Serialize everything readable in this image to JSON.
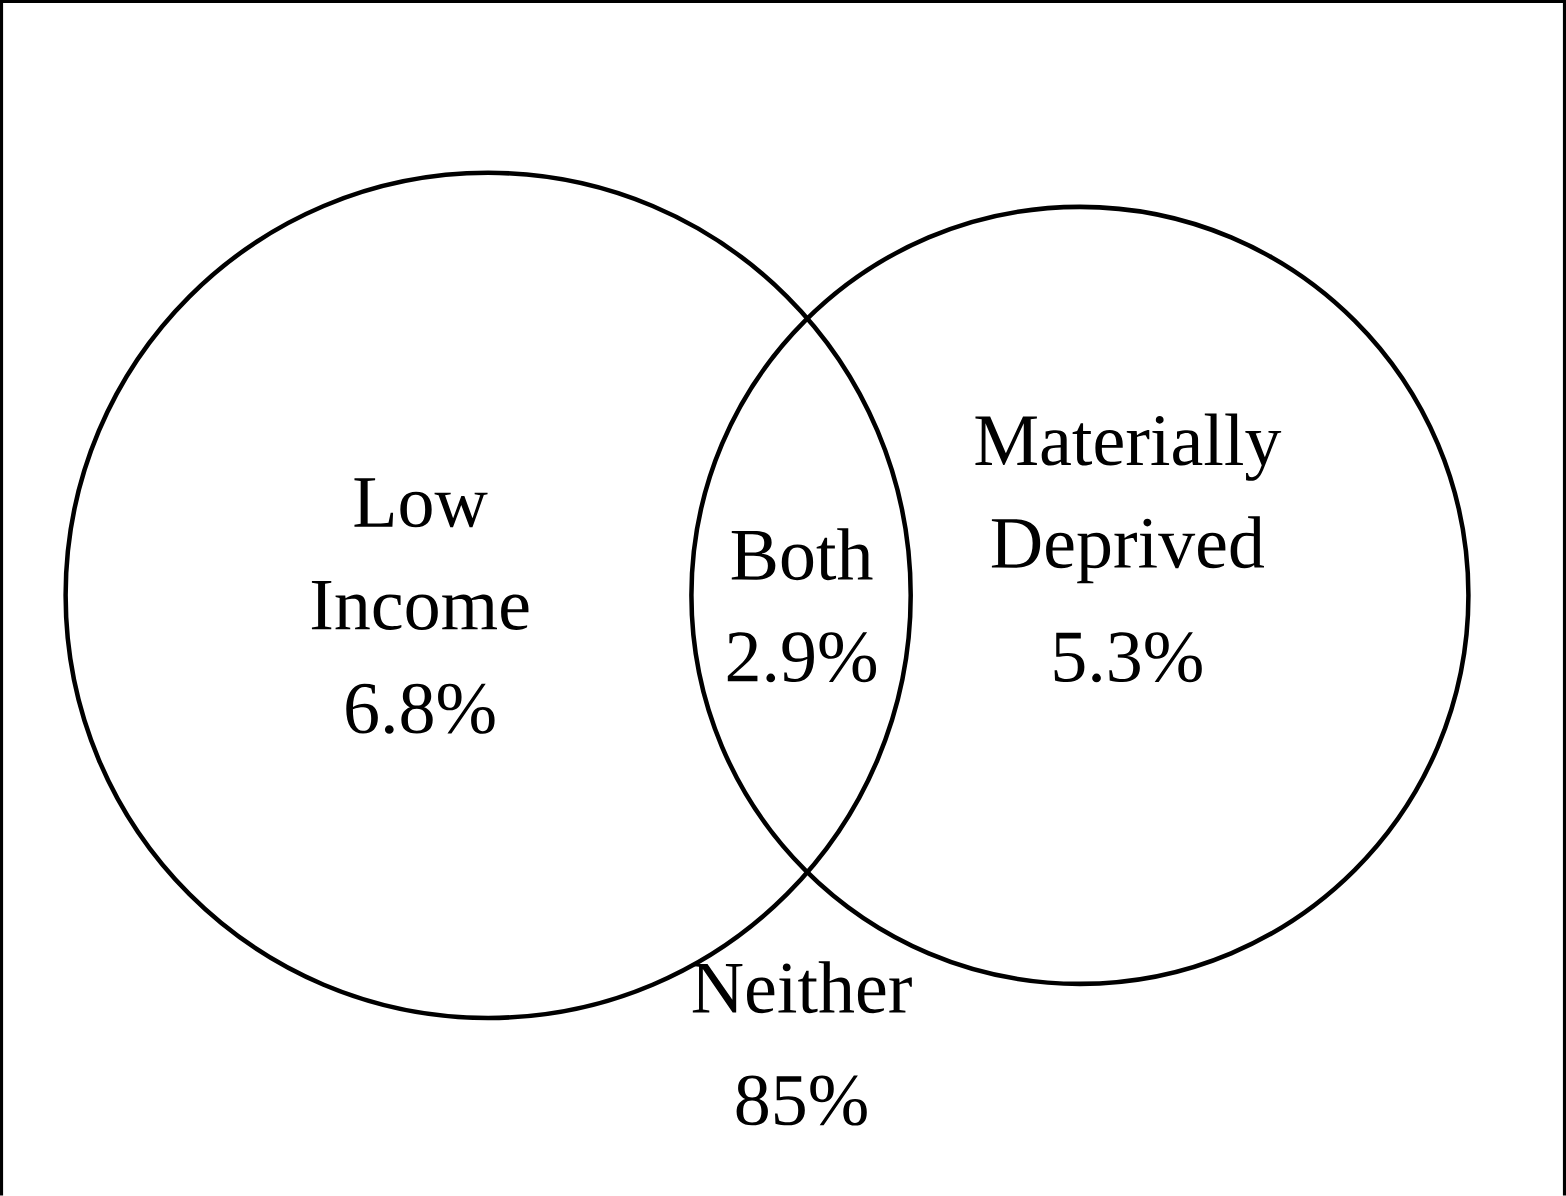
{
  "chart_data": {
    "type": "other",
    "categories": [
      "Low Income",
      "Both",
      "Materially Deprived",
      "Neither"
    ],
    "values": [
      6.8,
      2.9,
      5.3,
      85
    ],
    "value_labels": [
      "6.8%",
      "2.9%",
      "5.3%",
      "85%"
    ]
  }
}
